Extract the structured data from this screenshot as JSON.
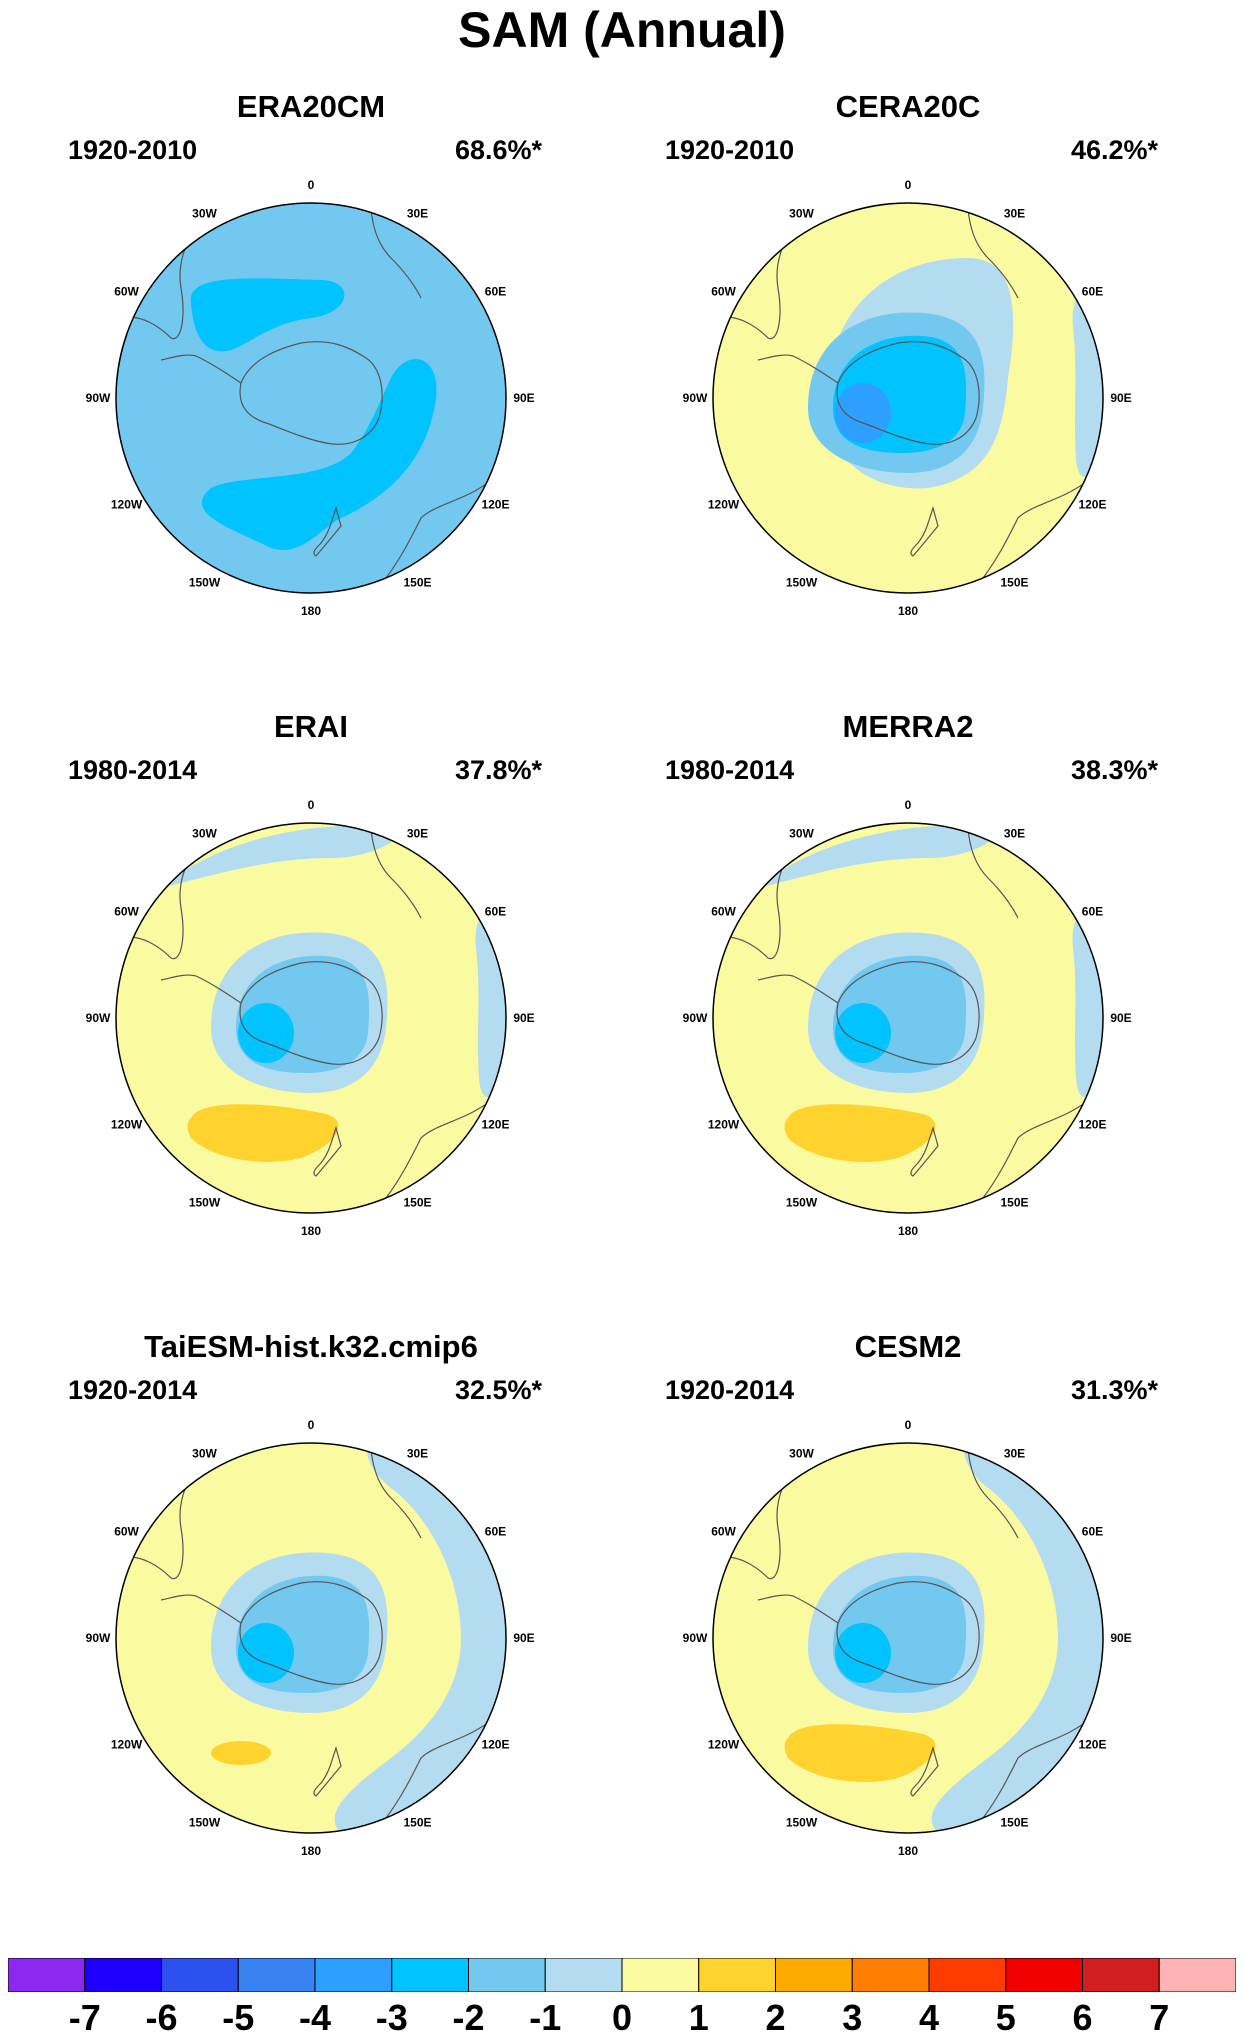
{
  "title": "SAM (Annual)",
  "longitude_labels": [
    "0",
    "30E",
    "60E",
    "90E",
    "120E",
    "150E",
    "180",
    "150W",
    "120W",
    "90W",
    "60W",
    "30W"
  ],
  "panels": [
    {
      "name": "ERA20CM",
      "period": "1920-2010",
      "variance": "68.6%*",
      "background": "#73c8f0",
      "fields": [
        {
          "kind": "-2",
          "color": "#00c3ff",
          "shape": "zone-upper-left"
        },
        {
          "kind": "-2",
          "color": "#00c3ff",
          "shape": "arc-lower-right"
        }
      ]
    },
    {
      "name": "CERA20C",
      "period": "1920-2010",
      "variance": "46.2%*",
      "background": "#fafaa0",
      "fields": [
        {
          "kind": "-1",
          "color": "#b4dcf0",
          "shape": "ring-large"
        },
        {
          "kind": "-1",
          "color": "#b4dcf0",
          "shape": "edge-right"
        },
        {
          "kind": "-2",
          "color": "#73c8f0",
          "shape": "ring-medium"
        },
        {
          "kind": "-3",
          "color": "#00c3ff",
          "shape": "core"
        },
        {
          "kind": "-4",
          "color": "#2da0ff",
          "shape": "spot"
        }
      ]
    },
    {
      "name": "ERAI",
      "period": "1980-2014",
      "variance": "37.8%*",
      "background": "#fafaa0",
      "fields": [
        {
          "kind": "-1",
          "color": "#b4dcf0",
          "shape": "edge-top"
        },
        {
          "kind": "-1",
          "color": "#b4dcf0",
          "shape": "edge-right"
        },
        {
          "kind": "-1",
          "color": "#b4dcf0",
          "shape": "ring-medium"
        },
        {
          "kind": "-2",
          "color": "#73c8f0",
          "shape": "core"
        },
        {
          "kind": "-3",
          "color": "#00c3ff",
          "shape": "spot"
        },
        {
          "kind": "2",
          "color": "#ffd22d",
          "shape": "blob-low"
        }
      ]
    },
    {
      "name": "MERRA2",
      "period": "1980-2014",
      "variance": "38.3%*",
      "background": "#fafaa0",
      "fields": [
        {
          "kind": "-1",
          "color": "#b4dcf0",
          "shape": "edge-top"
        },
        {
          "kind": "-1",
          "color": "#b4dcf0",
          "shape": "edge-right"
        },
        {
          "kind": "-1",
          "color": "#b4dcf0",
          "shape": "ring-medium"
        },
        {
          "kind": "-2",
          "color": "#73c8f0",
          "shape": "core"
        },
        {
          "kind": "-3",
          "color": "#00c3ff",
          "shape": "spot"
        },
        {
          "kind": "2",
          "color": "#ffd22d",
          "shape": "blob-low"
        }
      ]
    },
    {
      "name": "TaiESM-hist.k32.cmip6",
      "period": "1920-2014",
      "variance": "32.5%*",
      "background": "#fafaa0",
      "fields": [
        {
          "kind": "-1",
          "color": "#b4dcf0",
          "shape": "edge-right-wide"
        },
        {
          "kind": "-1",
          "color": "#b4dcf0",
          "shape": "ring-medium"
        },
        {
          "kind": "-2",
          "color": "#73c8f0",
          "shape": "core"
        },
        {
          "kind": "-3",
          "color": "#00c3ff",
          "shape": "spot"
        },
        {
          "kind": "2",
          "color": "#ffd22d",
          "shape": "blob-small"
        }
      ]
    },
    {
      "name": "CESM2",
      "period": "1920-2014",
      "variance": "31.3%*",
      "background": "#fafaa0",
      "fields": [
        {
          "kind": "-1",
          "color": "#b4dcf0",
          "shape": "edge-right-wide"
        },
        {
          "kind": "-1",
          "color": "#b4dcf0",
          "shape": "ring-medium"
        },
        {
          "kind": "-2",
          "color": "#73c8f0",
          "shape": "core"
        },
        {
          "kind": "-3",
          "color": "#00c3ff",
          "shape": "spot"
        },
        {
          "kind": "2",
          "color": "#ffd22d",
          "shape": "blob-low"
        }
      ]
    }
  ],
  "colorbar": {
    "labels": [
      "-7",
      "-6",
      "-5",
      "-4",
      "-3",
      "-2",
      "-1",
      "0",
      "1",
      "2",
      "3",
      "4",
      "5",
      "6",
      "7"
    ],
    "colors": [
      "#8c28f0",
      "#1e00ff",
      "#2d50f0",
      "#3782f0",
      "#2da0ff",
      "#00c3ff",
      "#73c8f0",
      "#b4dcf0",
      "#fafaa0",
      "#ffd22d",
      "#ffaa00",
      "#ff7d00",
      "#ff3c00",
      "#f00000",
      "#d21e1e",
      "#ffb4b4"
    ]
  }
}
